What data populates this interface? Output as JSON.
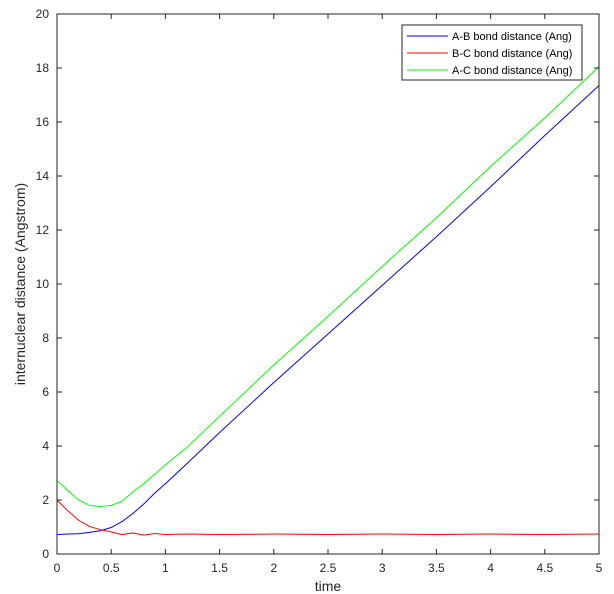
{
  "chart_data": {
    "type": "line",
    "xlabel": "time",
    "ylabel": "internuclear distance (Angstrom)",
    "xlim": [
      0,
      5
    ],
    "ylim": [
      0,
      20
    ],
    "xticks": [
      0,
      0.5,
      1,
      1.5,
      2,
      2.5,
      3,
      3.5,
      4,
      4.5,
      5
    ],
    "yticks": [
      0,
      2,
      4,
      6,
      8,
      10,
      12,
      14,
      16,
      18,
      20
    ],
    "xtick_labels": [
      "0",
      "0.5",
      "1",
      "1.5",
      "2",
      "2.5",
      "3",
      "3.5",
      "4",
      "4.5",
      "5"
    ],
    "ytick_labels": [
      "0",
      "2",
      "4",
      "6",
      "8",
      "10",
      "12",
      "14",
      "16",
      "18",
      "20"
    ],
    "grid": false,
    "legend_position": "top-right",
    "series": [
      {
        "name": "A-B bond distance (Ang)",
        "color": "#0000ff",
        "x": [
          0,
          0.1,
          0.2,
          0.3,
          0.4,
          0.5,
          0.6,
          0.7,
          0.8,
          0.9,
          1.0,
          1.2,
          1.5,
          2.0,
          2.5,
          3.0,
          3.5,
          4.0,
          4.5,
          5.0
        ],
        "y": [
          0.72,
          0.74,
          0.75,
          0.8,
          0.86,
          0.98,
          1.2,
          1.5,
          1.85,
          2.25,
          2.6,
          3.35,
          4.5,
          6.35,
          8.15,
          9.95,
          11.75,
          13.6,
          15.5,
          17.35
        ]
      },
      {
        "name": "B-C bond distance (Ang)",
        "color": "#ff0000",
        "x": [
          0,
          0.1,
          0.2,
          0.3,
          0.4,
          0.5,
          0.6,
          0.7,
          0.8,
          0.9,
          1.0,
          1.2,
          1.5,
          2.0,
          2.5,
          3.0,
          3.5,
          4.0,
          4.5,
          5.0
        ],
        "y": [
          2.0,
          1.6,
          1.25,
          1.02,
          0.9,
          0.82,
          0.72,
          0.78,
          0.7,
          0.76,
          0.72,
          0.74,
          0.72,
          0.74,
          0.72,
          0.74,
          0.72,
          0.74,
          0.72,
          0.74
        ]
      },
      {
        "name": "A-C bond distance (Ang)",
        "color": "#00ff00",
        "x": [
          0,
          0.1,
          0.2,
          0.3,
          0.4,
          0.5,
          0.6,
          0.7,
          0.8,
          0.9,
          1.0,
          1.2,
          1.5,
          2.0,
          2.5,
          3.0,
          3.5,
          4.0,
          4.5,
          5.0
        ],
        "y": [
          2.72,
          2.35,
          2.0,
          1.8,
          1.76,
          1.8,
          1.95,
          2.3,
          2.6,
          2.95,
          3.3,
          3.95,
          5.1,
          7.0,
          8.8,
          10.65,
          12.45,
          14.35,
          16.15,
          18.05
        ]
      }
    ]
  }
}
